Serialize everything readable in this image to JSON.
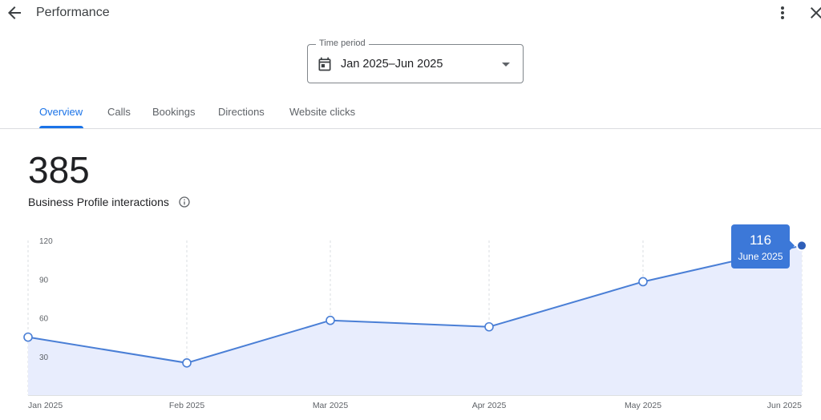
{
  "header": {
    "title": "Performance",
    "back_icon": "arrow-back-icon",
    "more_icon": "more-vert-icon",
    "close_icon": "close-icon"
  },
  "time_period": {
    "label": "Time period",
    "value": "Jan 2025–Jun 2025",
    "icon": "calendar-icon"
  },
  "tabs": [
    {
      "label": "Overview",
      "active": true
    },
    {
      "label": "Calls",
      "active": false
    },
    {
      "label": "Bookings",
      "active": false
    },
    {
      "label": "Directions",
      "active": false
    },
    {
      "label": "Website clicks",
      "active": false
    }
  ],
  "metric": {
    "value": "385",
    "label": "Business Profile interactions"
  },
  "colors": {
    "accent": "#1a73e8",
    "line": "#4a7fd6",
    "area_fill": "#e8edfd",
    "tooltip_bg": "#3c78d8"
  },
  "chart_data": {
    "type": "area",
    "x": [
      "Jan 2025",
      "Feb 2025",
      "Mar 2025",
      "Apr 2025",
      "May 2025",
      "Jun 2025"
    ],
    "values": [
      45,
      25,
      58,
      53,
      88,
      116
    ],
    "y_ticks": [
      "120",
      "90",
      "60",
      "30"
    ],
    "ylim": [
      0,
      120
    ],
    "grid": "vertical dashed",
    "tooltip": {
      "value": "116",
      "label": "June 2025"
    }
  }
}
